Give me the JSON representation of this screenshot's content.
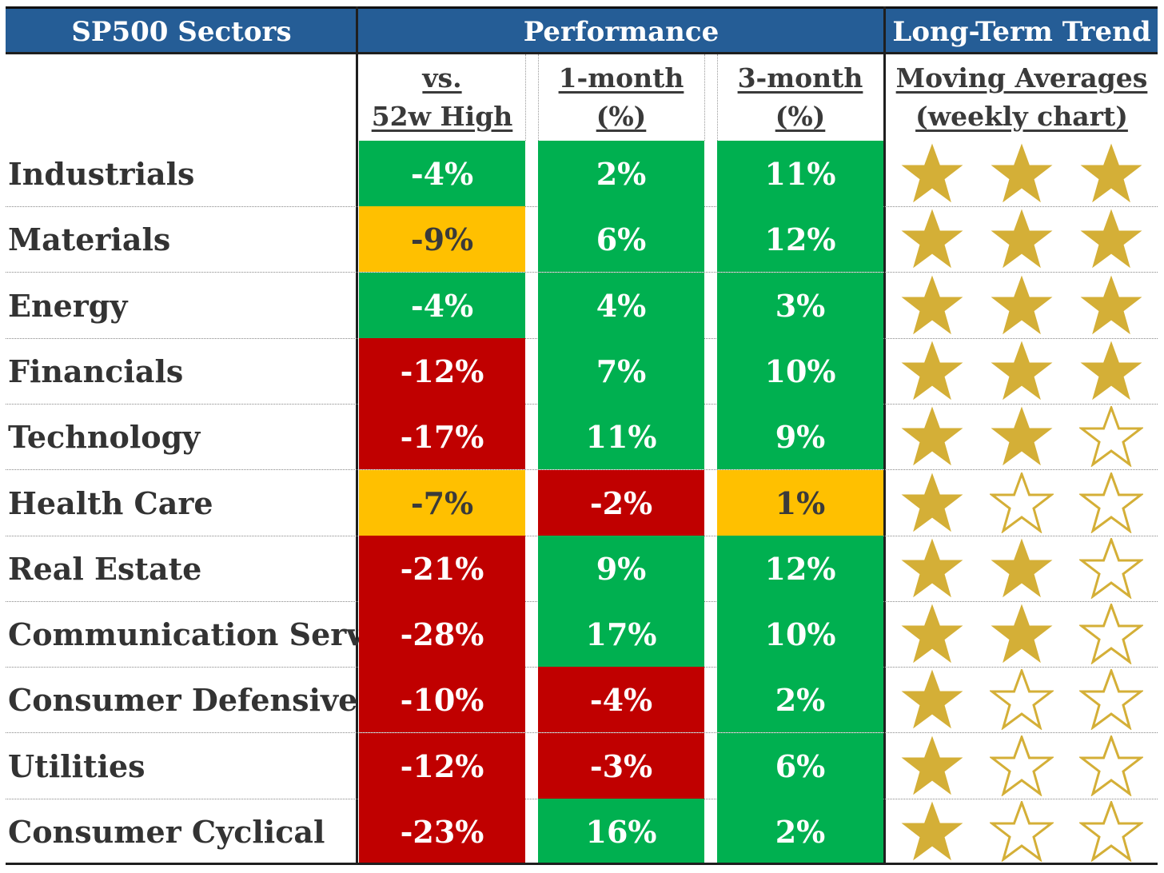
{
  "header": {
    "sectors": "SP500 Sectors",
    "performance": "Performance",
    "trend": "Long-Term Trend"
  },
  "subheader": {
    "col1_line1": "vs.",
    "col1_line2": "52w High",
    "col2_line1": "1-month",
    "col2_line2": "(%)",
    "col3_line1": "3-month",
    "col3_line2": "(%)",
    "col4_line1": "Moving Averages",
    "col4_line2": "(weekly chart)"
  },
  "colors": {
    "header_blue": "#255d96",
    "green": "#00b050",
    "amber": "#ffc000",
    "red": "#c00000",
    "star_gold": "#d4af37"
  },
  "rows": [
    {
      "sector": "Industrials",
      "vs_high": "-4%",
      "vs_high_color": "green",
      "m1": "2%",
      "m1_color": "green",
      "m3": "11%",
      "m3_color": "green",
      "stars": 3
    },
    {
      "sector": "Materials",
      "vs_high": "-9%",
      "vs_high_color": "amber",
      "m1": "6%",
      "m1_color": "green",
      "m3": "12%",
      "m3_color": "green",
      "stars": 3
    },
    {
      "sector": "Energy",
      "vs_high": "-4%",
      "vs_high_color": "green",
      "m1": "4%",
      "m1_color": "green",
      "m3": "3%",
      "m3_color": "green",
      "stars": 3
    },
    {
      "sector": "Financials",
      "vs_high": "-12%",
      "vs_high_color": "red",
      "m1": "7%",
      "m1_color": "green",
      "m3": "10%",
      "m3_color": "green",
      "stars": 3
    },
    {
      "sector": "Technology",
      "vs_high": "-17%",
      "vs_high_color": "red",
      "m1": "11%",
      "m1_color": "green",
      "m3": "9%",
      "m3_color": "green",
      "stars": 2
    },
    {
      "sector": "Health Care",
      "vs_high": "-7%",
      "vs_high_color": "amber",
      "m1": "-2%",
      "m1_color": "red",
      "m3": "1%",
      "m3_color": "amber",
      "stars": 1
    },
    {
      "sector": "Real Estate",
      "vs_high": "-21%",
      "vs_high_color": "red",
      "m1": "9%",
      "m1_color": "green",
      "m3": "12%",
      "m3_color": "green",
      "stars": 2
    },
    {
      "sector": "Communication Serv.",
      "vs_high": "-28%",
      "vs_high_color": "red",
      "m1": "17%",
      "m1_color": "green",
      "m3": "10%",
      "m3_color": "green",
      "stars": 2
    },
    {
      "sector": "Consumer Defensive",
      "vs_high": "-10%",
      "vs_high_color": "red",
      "m1": "-4%",
      "m1_color": "red",
      "m3": "2%",
      "m3_color": "green",
      "stars": 1
    },
    {
      "sector": "Utilities",
      "vs_high": "-12%",
      "vs_high_color": "red",
      "m1": "-3%",
      "m1_color": "red",
      "m3": "6%",
      "m3_color": "green",
      "stars": 1
    },
    {
      "sector": "Consumer Cyclical",
      "vs_high": "-23%",
      "vs_high_color": "red",
      "m1": "16%",
      "m1_color": "green",
      "m3": "2%",
      "m3_color": "green",
      "stars": 1
    }
  ]
}
